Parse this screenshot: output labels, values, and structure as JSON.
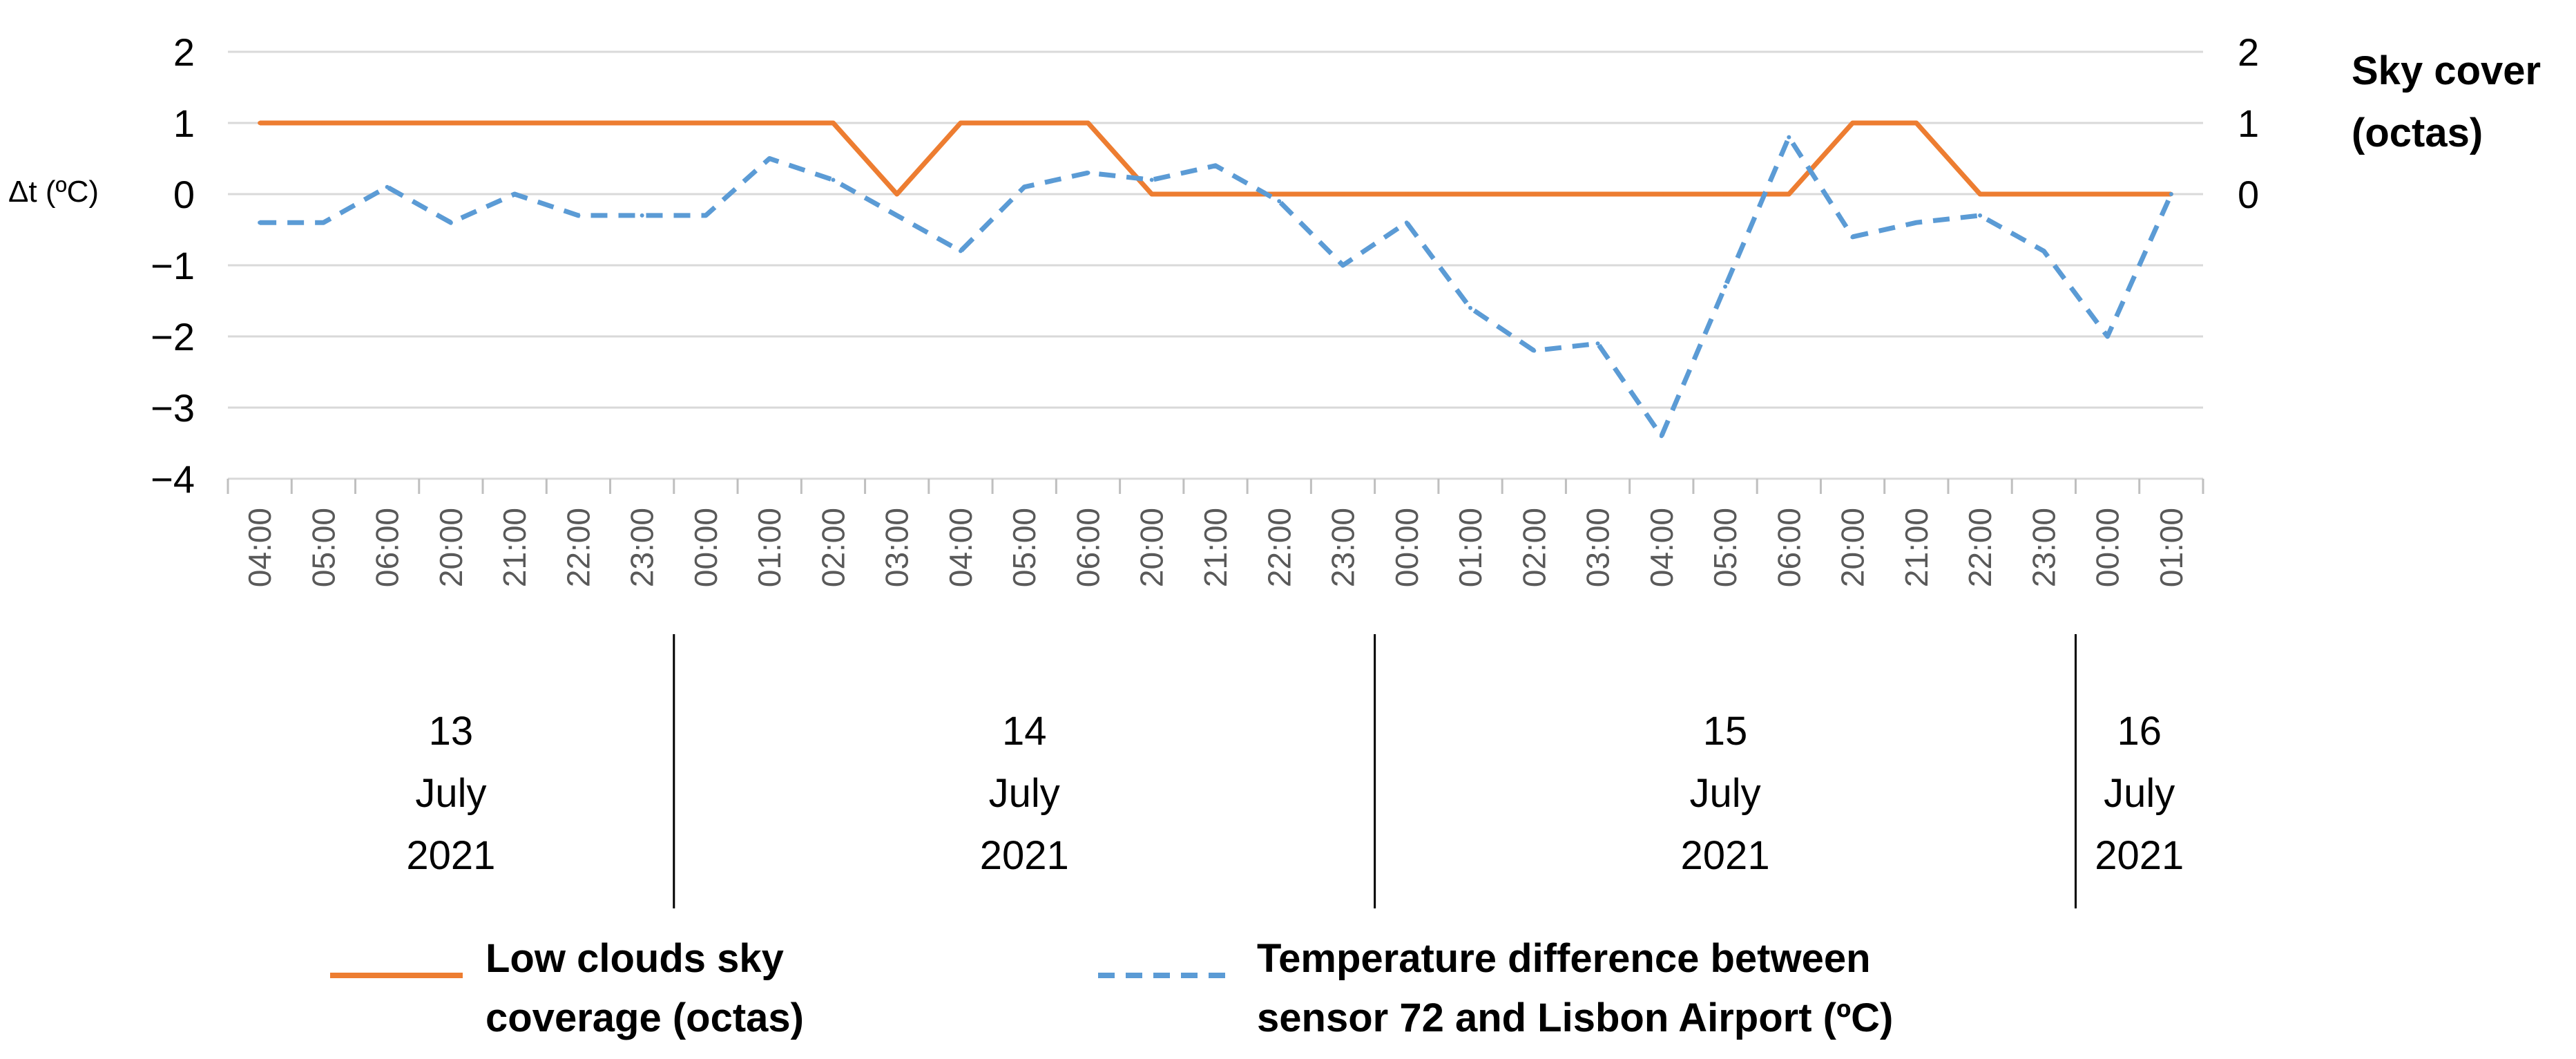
{
  "chart_data": {
    "type": "line",
    "left_axis": {
      "title": "Δt (ºC)",
      "ticks": [
        "2",
        "1",
        "0",
        "−1",
        "−2",
        "−3",
        "−4"
      ],
      "ylim": [
        -4,
        2
      ]
    },
    "right_axis": {
      "title_lines": [
        "Sky cover",
        "(octas)"
      ],
      "ticks": [
        "2",
        "1",
        "0"
      ],
      "ylim": [
        -4,
        2
      ]
    },
    "x": [
      "04:00",
      "05:00",
      "06:00",
      "20:00",
      "21:00",
      "22:00",
      "23:00",
      "00:00",
      "01:00",
      "02:00",
      "03:00",
      "04:00",
      "05:00",
      "06:00",
      "20:00",
      "21:00",
      "22:00",
      "23:00",
      "00:00",
      "01:00",
      "02:00",
      "03:00",
      "04:00",
      "05:00",
      "06:00",
      "20:00",
      "21:00",
      "22:00",
      "23:00",
      "00:00",
      "01:00"
    ],
    "series": [
      {
        "name": "Low clouds sky coverage (octas)",
        "legend_lines": [
          "Low clouds sky",
          "coverage (octas)"
        ],
        "axis": "right",
        "color": "#ED7D31",
        "dash": "solid",
        "values": [
          1,
          1,
          1,
          1,
          1,
          1,
          1,
          1,
          1,
          1,
          0,
          1,
          1,
          1,
          0,
          0,
          0,
          0,
          0,
          0,
          0,
          0,
          0,
          0,
          0,
          1,
          1,
          0,
          0,
          0,
          0
        ]
      },
      {
        "name": "Temperature difference between sensor 72 and Lisbon Airport (ºC)",
        "legend_lines": [
          "Temperature difference between",
          "sensor 72 and Lisbon Airport (ºC)"
        ],
        "axis": "left",
        "color": "#5B9BD5",
        "dash": "dashed",
        "values": [
          -0.4,
          -0.4,
          0.1,
          -0.4,
          0.0,
          -0.3,
          -0.3,
          -0.3,
          0.5,
          0.2,
          -0.3,
          -0.8,
          0.1,
          0.3,
          0.2,
          0.4,
          -0.1,
          -1.0,
          -0.4,
          -1.6,
          -2.2,
          -2.1,
          -3.4,
          -1.3,
          0.8,
          -0.6,
          -0.4,
          -0.3,
          -0.8,
          -2.0,
          0.0
        ]
      }
    ],
    "day_groups": [
      {
        "lines": [
          "13",
          "July",
          "2021"
        ],
        "start_index": 0,
        "end_index": 6
      },
      {
        "lines": [
          "14",
          "July",
          "2021"
        ],
        "start_index": 7,
        "end_index": 17
      },
      {
        "lines": [
          "15",
          "July",
          "2021"
        ],
        "start_index": 18,
        "end_index": 28
      },
      {
        "lines": [
          "16",
          "July",
          "2021"
        ],
        "start_index": 29,
        "end_index": 30
      }
    ],
    "gridlines": true,
    "legend_position": "bottom"
  }
}
